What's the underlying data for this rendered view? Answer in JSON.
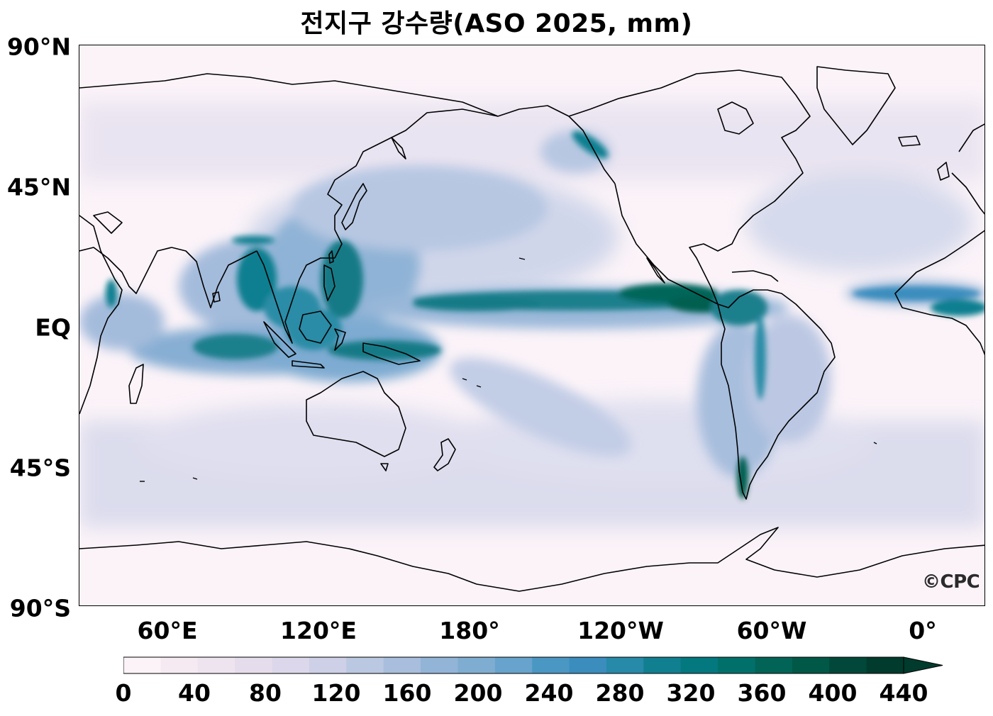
{
  "title": "전지구 강수량(ASO 2025, mm)",
  "watermark": "©CPC",
  "y_ticks": [
    "90°N",
    "45°N",
    "EQ",
    "45°S",
    "90°S"
  ],
  "x_ticks": [
    "60°E",
    "120°E",
    "180°",
    "120°W",
    "60°W",
    "0°"
  ],
  "colorbar": {
    "ticks": [
      "0",
      "40",
      "80",
      "120",
      "160",
      "200",
      "240",
      "280",
      "320",
      "360",
      "400",
      "440"
    ],
    "min": 0,
    "max": 440,
    "step": 20,
    "extend": "max",
    "colors": [
      "#fbf3f8",
      "#f5e9f2",
      "#eee4ef",
      "#e6ddec",
      "#dcd7ea",
      "#cdd0e6",
      "#bac8e1",
      "#a8bedc",
      "#92b4d6",
      "#7fadd1",
      "#67a3cc",
      "#4b97c4",
      "#3a8dbd",
      "#268aa8",
      "#107f90",
      "#03787e",
      "#02706a",
      "#026456",
      "#015846",
      "#01483a",
      "#003b2d"
    ]
  },
  "chart_data": {
    "type": "heatmap",
    "title": "전지구 강수량(ASO 2025, mm)",
    "projection": "equirectangular, central longitude 180°",
    "lon_range": [
      25,
      385
    ],
    "lat_range": [
      -90,
      90
    ],
    "units": "mm",
    "features": [
      {
        "name": "Pacific ITCZ",
        "lon": [
          155,
          290
        ],
        "lat": [
          5,
          12
        ],
        "value_mm": 420
      },
      {
        "name": "Atlantic ITCZ",
        "lon": [
          310,
          350
        ],
        "lat": [
          3,
          10
        ],
        "value_mm": 300
      },
      {
        "name": "Bay of Bengal / Indochina monsoon",
        "lon": [
          80,
          110
        ],
        "lat": [
          10,
          25
        ],
        "value_mm": 380
      },
      {
        "name": "Western Pacific warm pool",
        "lon": [
          120,
          145
        ],
        "lat": [
          -5,
          18
        ],
        "value_mm": 380
      },
      {
        "name": "Maritime Continent",
        "lon": [
          100,
          160
        ],
        "lat": [
          -10,
          0
        ],
        "value_mm": 360
      },
      {
        "name": "Equatorial Indian Ocean",
        "lon": [
          60,
          100
        ],
        "lat": [
          -7,
          3
        ],
        "value_mm": 300
      },
      {
        "name": "Central America",
        "lon": [
          265,
          285
        ],
        "lat": [
          7,
          16
        ],
        "value_mm": 380
      },
      {
        "name": "Southern Chile",
        "lon": [
          285,
          288
        ],
        "lat": [
          -55,
          -40
        ],
        "value_mm": 400
      },
      {
        "name": "Gulf of Alaska coast",
        "lon": [
          210,
          225
        ],
        "lat": [
          55,
          60
        ],
        "value_mm": 360
      },
      {
        "name": "Southern Ocean storm track",
        "lon": [
          25,
          385
        ],
        "lat": [
          -60,
          -40
        ],
        "value_mm": 140
      },
      {
        "name": "North Pacific storm track",
        "lon": [
          140,
          220
        ],
        "lat": [
          35,
          50
        ],
        "value_mm": 180
      }
    ]
  }
}
